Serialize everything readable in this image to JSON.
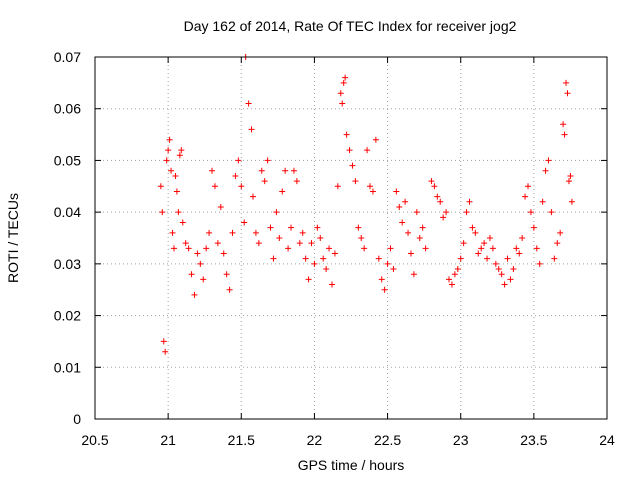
{
  "chart_data": {
    "type": "scatter",
    "title": "Day 162 of 2014, Rate Of TEC Index for receiver jog2",
    "xlabel": "GPS time / hours",
    "ylabel": "ROTI / TECUs",
    "xlim": [
      20.5,
      24
    ],
    "ylim": [
      0,
      0.07
    ],
    "xticks": [
      20.5,
      21,
      21.5,
      22,
      22.5,
      23,
      23.5,
      24
    ],
    "xtick_labels": [
      "20.5",
      "21",
      "21.5",
      "22",
      "22.5",
      "23",
      "23.5",
      "24"
    ],
    "yticks": [
      0,
      0.01,
      0.02,
      0.03,
      0.04,
      0.05,
      0.06,
      0.07
    ],
    "ytick_labels": [
      "0",
      "0.01",
      "0.02",
      "0.03",
      "0.04",
      "0.05",
      "0.06",
      "0.07"
    ],
    "grid": true,
    "marker": "+",
    "color": "#ff0000",
    "series": [
      {
        "name": "ROTI",
        "points": [
          [
            20.95,
            0.045
          ],
          [
            20.96,
            0.04
          ],
          [
            20.97,
            0.015
          ],
          [
            20.98,
            0.013
          ],
          [
            20.99,
            0.05
          ],
          [
            21.0,
            0.052
          ],
          [
            21.01,
            0.054
          ],
          [
            21.02,
            0.048
          ],
          [
            21.03,
            0.036
          ],
          [
            21.04,
            0.033
          ],
          [
            21.05,
            0.047
          ],
          [
            21.06,
            0.044
          ],
          [
            21.07,
            0.04
          ],
          [
            21.08,
            0.051
          ],
          [
            21.09,
            0.052
          ],
          [
            21.1,
            0.038
          ],
          [
            21.12,
            0.034
          ],
          [
            21.14,
            0.033
          ],
          [
            21.16,
            0.028
          ],
          [
            21.18,
            0.024
          ],
          [
            21.2,
            0.032
          ],
          [
            21.22,
            0.03
          ],
          [
            21.24,
            0.027
          ],
          [
            21.26,
            0.033
          ],
          [
            21.28,
            0.036
          ],
          [
            21.3,
            0.048
          ],
          [
            21.32,
            0.045
          ],
          [
            21.34,
            0.034
          ],
          [
            21.36,
            0.041
          ],
          [
            21.38,
            0.032
          ],
          [
            21.4,
            0.028
          ],
          [
            21.42,
            0.025
          ],
          [
            21.44,
            0.036
          ],
          [
            21.46,
            0.047
          ],
          [
            21.48,
            0.05
          ],
          [
            21.5,
            0.045
          ],
          [
            21.52,
            0.038
          ],
          [
            21.53,
            0.07
          ],
          [
            21.55,
            0.061
          ],
          [
            21.57,
            0.056
          ],
          [
            21.58,
            0.043
          ],
          [
            21.6,
            0.036
          ],
          [
            21.62,
            0.034
          ],
          [
            21.64,
            0.048
          ],
          [
            21.66,
            0.046
          ],
          [
            21.68,
            0.05
          ],
          [
            21.7,
            0.037
          ],
          [
            21.72,
            0.031
          ],
          [
            21.74,
            0.04
          ],
          [
            21.76,
            0.035
          ],
          [
            21.78,
            0.044
          ],
          [
            21.8,
            0.048
          ],
          [
            21.82,
            0.033
          ],
          [
            21.84,
            0.037
          ],
          [
            21.86,
            0.048
          ],
          [
            21.88,
            0.046
          ],
          [
            21.9,
            0.034
          ],
          [
            21.92,
            0.036
          ],
          [
            21.94,
            0.031
          ],
          [
            21.96,
            0.027
          ],
          [
            21.98,
            0.034
          ],
          [
            22.0,
            0.03
          ],
          [
            22.02,
            0.037
          ],
          [
            22.04,
            0.035
          ],
          [
            22.06,
            0.031
          ],
          [
            22.08,
            0.029
          ],
          [
            22.1,
            0.033
          ],
          [
            22.12,
            0.026
          ],
          [
            22.14,
            0.032
          ],
          [
            22.16,
            0.045
          ],
          [
            22.18,
            0.063
          ],
          [
            22.19,
            0.061
          ],
          [
            22.2,
            0.065
          ],
          [
            22.21,
            0.066
          ],
          [
            22.22,
            0.055
          ],
          [
            22.24,
            0.052
          ],
          [
            22.26,
            0.049
          ],
          [
            22.28,
            0.046
          ],
          [
            22.3,
            0.037
          ],
          [
            22.32,
            0.035
          ],
          [
            22.34,
            0.033
          ],
          [
            22.36,
            0.052
          ],
          [
            22.38,
            0.045
          ],
          [
            22.4,
            0.044
          ],
          [
            22.42,
            0.054
          ],
          [
            22.44,
            0.031
          ],
          [
            22.46,
            0.027
          ],
          [
            22.48,
            0.025
          ],
          [
            22.5,
            0.03
          ],
          [
            22.52,
            0.033
          ],
          [
            22.54,
            0.029
          ],
          [
            22.56,
            0.044
          ],
          [
            22.58,
            0.041
          ],
          [
            22.6,
            0.038
          ],
          [
            22.62,
            0.042
          ],
          [
            22.64,
            0.036
          ],
          [
            22.66,
            0.032
          ],
          [
            22.68,
            0.028
          ],
          [
            22.7,
            0.04
          ],
          [
            22.72,
            0.035
          ],
          [
            22.74,
            0.037
          ],
          [
            22.76,
            0.033
          ],
          [
            22.8,
            0.046
          ],
          [
            22.82,
            0.045
          ],
          [
            22.84,
            0.043
          ],
          [
            22.86,
            0.042
          ],
          [
            22.88,
            0.039
          ],
          [
            22.9,
            0.04
          ],
          [
            22.92,
            0.027
          ],
          [
            22.94,
            0.026
          ],
          [
            22.96,
            0.028
          ],
          [
            22.98,
            0.029
          ],
          [
            23.0,
            0.031
          ],
          [
            23.02,
            0.034
          ],
          [
            23.04,
            0.04
          ],
          [
            23.06,
            0.042
          ],
          [
            23.08,
            0.037
          ],
          [
            23.1,
            0.036
          ],
          [
            23.12,
            0.032
          ],
          [
            23.14,
            0.033
          ],
          [
            23.16,
            0.034
          ],
          [
            23.18,
            0.031
          ],
          [
            23.2,
            0.035
          ],
          [
            23.22,
            0.033
          ],
          [
            23.24,
            0.03
          ],
          [
            23.26,
            0.029
          ],
          [
            23.28,
            0.028
          ],
          [
            23.3,
            0.026
          ],
          [
            23.32,
            0.031
          ],
          [
            23.34,
            0.027
          ],
          [
            23.36,
            0.029
          ],
          [
            23.38,
            0.033
          ],
          [
            23.4,
            0.032
          ],
          [
            23.42,
            0.035
          ],
          [
            23.44,
            0.043
          ],
          [
            23.46,
            0.045
          ],
          [
            23.48,
            0.04
          ],
          [
            23.5,
            0.037
          ],
          [
            23.52,
            0.033
          ],
          [
            23.54,
            0.03
          ],
          [
            23.56,
            0.042
          ],
          [
            23.58,
            0.048
          ],
          [
            23.6,
            0.05
          ],
          [
            23.62,
            0.04
          ],
          [
            23.64,
            0.031
          ],
          [
            23.66,
            0.034
          ],
          [
            23.68,
            0.036
          ],
          [
            23.7,
            0.057
          ],
          [
            23.71,
            0.055
          ],
          [
            23.72,
            0.065
          ],
          [
            23.73,
            0.063
          ],
          [
            23.74,
            0.046
          ],
          [
            23.75,
            0.047
          ],
          [
            23.76,
            0.042
          ]
        ]
      }
    ]
  }
}
